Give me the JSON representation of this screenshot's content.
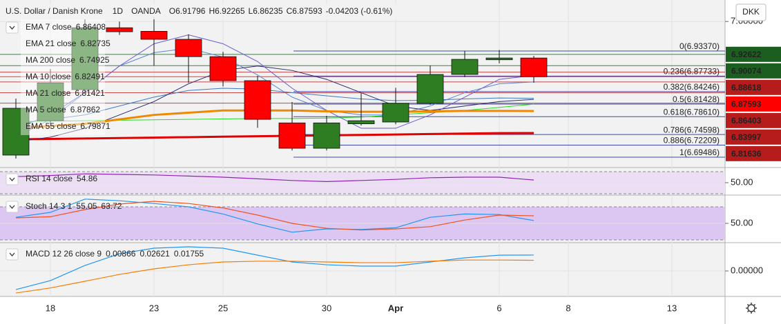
{
  "chart_data": [
    {
      "type": "candlestick",
      "title": "U.S. Dollar / Danish Krone",
      "interval": "1D",
      "source": "OANDA",
      "ohlc_labels": [
        "O6.91796",
        "H6.92265",
        "L6.86235",
        "C6.87593"
      ],
      "change_label": "-0.04203 (-0.61%)",
      "currency": "DKK",
      "open": [
        6.6996,
        6.777,
        6.847,
        6.986,
        6.978,
        6.96,
        6.921,
        6.867,
        6.772,
        6.715,
        6.77,
        6.774,
        6.816,
        6.881,
        6.914,
        6.91796
      ],
      "high": [
        6.8267,
        6.893,
        7.005,
        7.0,
        7.01,
        6.971,
        6.932,
        6.878,
        6.819,
        6.788,
        6.839,
        6.851,
        6.901,
        6.934,
        6.936,
        6.92265
      ],
      "low": [
        6.6918,
        6.769,
        6.839,
        6.97,
        6.901,
        6.862,
        6.854,
        6.761,
        6.71,
        6.71,
        6.766,
        6.769,
        6.813,
        6.875,
        6.906,
        6.86235
      ],
      "close": [
        6.805,
        6.862,
        6.986,
        6.977,
        6.96,
        6.921,
        6.867,
        6.78,
        6.715,
        6.772,
        6.777,
        6.816,
        6.881,
        6.915,
        6.918,
        6.87593
      ],
      "up_color": "#2e7d22",
      "down_color": "#ff0000",
      "xlim": [
        -0.46,
        20.54
      ],
      "xticks": [
        {
          "value": 1,
          "label": "18"
        },
        {
          "value": 4,
          "label": "23"
        },
        {
          "value": 6,
          "label": "25"
        },
        {
          "value": 9,
          "label": "30"
        },
        {
          "value": 11,
          "label": "Apr"
        },
        {
          "value": 14,
          "label": "6"
        },
        {
          "value": 16,
          "label": "8"
        },
        {
          "value": 19,
          "label": "13"
        }
      ],
      "ylim": [
        6.6717,
        7.0484
      ],
      "yticks": [
        {
          "value": 7,
          "label": "7.00000"
        }
      ],
      "series": [
        {
          "name": "EMA 7 close",
          "color": "#5c85d6",
          "width": 1,
          "values": [
            6.74,
            6.78,
            6.84,
            6.9,
            6.93,
            6.94,
            6.92,
            6.88,
            6.83,
            6.8,
            6.79,
            6.79,
            6.81,
            6.84,
            6.86,
            6.86408
          ]
        },
        {
          "name": "EMA 21 close",
          "color": "#3f78c0",
          "width": 1,
          "values": [
            6.77,
            6.78,
            6.79,
            6.81,
            6.83,
            6.845,
            6.85,
            6.848,
            6.84,
            6.833,
            6.826,
            6.822,
            6.823,
            6.826,
            6.828,
            6.82735
          ]
        },
        {
          "name": "MA 200 close",
          "color": "#e00000",
          "width": 3,
          "values": [
            6.735,
            6.736,
            6.737,
            6.738,
            6.739,
            6.74,
            6.741,
            6.742,
            6.743,
            6.744,
            6.745,
            6.746,
            6.747,
            6.748,
            6.749,
            6.74925
          ]
        },
        {
          "name": "MA 10 close",
          "color": "#2a2a6e",
          "width": 1,
          "values": [
            6.73,
            6.74,
            6.76,
            6.79,
            6.82,
            6.86,
            6.89,
            6.9,
            6.89,
            6.87,
            6.84,
            6.81,
            6.8,
            6.81,
            6.82,
            6.82491
          ]
        },
        {
          "name": "MA 21 close",
          "color": "#22dd22",
          "width": 1,
          "values": [
            6.775,
            6.776,
            6.777,
            6.778,
            6.779,
            6.78,
            6.781,
            6.782,
            6.782,
            6.783,
            6.785,
            6.79,
            6.795,
            6.8,
            6.807,
            6.81421
          ]
        },
        {
          "name": "MA 5 close",
          "color": "#6a5acd",
          "width": 1,
          "values": [
            6.76,
            6.79,
            6.84,
            6.9,
            6.95,
            6.97,
            6.95,
            6.91,
            6.85,
            6.8,
            6.76,
            6.76,
            6.79,
            6.83,
            6.87,
            6.87862
          ]
        },
        {
          "name": "EMA 55 close",
          "color": "#ef8a00",
          "width": 3,
          "values": [
            6.76,
            6.765,
            6.77,
            6.78,
            6.79,
            6.795,
            6.8,
            6.8,
            6.8,
            6.798,
            6.797,
            6.797,
            6.798,
            6.799,
            6.799,
            6.79871
          ]
        }
      ],
      "fib_levels": [
        {
          "label": "0(6.93370)",
          "value": 6.9337
        },
        {
          "label": "0.236(6.87733)",
          "value": 6.87733
        },
        {
          "label": "0.382(6.84246)",
          "value": 6.84246
        },
        {
          "label": "0.5(6.81428)",
          "value": 6.81428
        },
        {
          "label": "0.618(6.78610)",
          "value": 6.7861
        },
        {
          "label": "0.786(6.74598)",
          "value": 6.74598
        },
        {
          "label": "0.886(6.72209)",
          "value": 6.72209
        },
        {
          "label": "1(6.69486)",
          "value": 6.69486
        }
      ],
      "fib_color": "#3949ab",
      "price_tags": [
        {
          "value": 6.92622,
          "color": "#1b5e20"
        },
        {
          "value": 6.90074,
          "color": "#1b5e20"
        },
        {
          "value": 6.88618,
          "color": "#b71c1c"
        },
        {
          "value": 6.87593,
          "color": "#ff0000"
        },
        {
          "value": 6.86403,
          "color": "#b71c1c"
        },
        {
          "value": 6.83997,
          "color": "#b71c1c"
        },
        {
          "value": 6.81636,
          "color": "#b71c1c"
        }
      ]
    },
    {
      "type": "line",
      "title": "RSI 14 close",
      "ylim": [
        27.5,
        77.5
      ],
      "yticks": [
        {
          "value": 50,
          "label": "50.00"
        }
      ],
      "band": [
        30,
        70
      ],
      "band_color": "#ecdff5",
      "series": [
        {
          "color": "#8e24aa",
          "values": [
            61,
            63,
            66,
            65,
            64,
            62,
            60,
            57,
            54,
            52,
            54,
            56,
            59,
            60,
            60,
            54.86
          ]
        }
      ]
    },
    {
      "type": "line",
      "title": "Stoch 14 3 1",
      "ylim": [
        15,
        101.25
      ],
      "yticks": [
        {
          "value": 50,
          "label": "50.00"
        }
      ],
      "band": [
        20,
        80
      ],
      "band_color": "#dcc6f2",
      "series": [
        {
          "color": "#2196f3",
          "values": [
            61,
            70,
            94,
            91,
            86,
            80,
            67,
            49,
            34,
            40,
            39,
            42,
            61,
            67,
            66,
            55.05
          ]
        },
        {
          "color": "#f4511e",
          "values": [
            60,
            62,
            75,
            85,
            90,
            86,
            78,
            65,
            50,
            41,
            38,
            40,
            44,
            56,
            65,
            63.72
          ]
        }
      ]
    },
    {
      "type": "line",
      "title": "MACD 12 26 close 9",
      "ylim": [
        -0.042,
        0.0466
      ],
      "yticks": [
        {
          "value": 0,
          "label": "0.00000"
        }
      ],
      "histogram": {
        "value": 0.00866,
        "color": "#a8dde8"
      },
      "series": [
        {
          "color": "#2196f3",
          "values": [
            -0.0307,
            -0.016,
            0.009,
            0.0284,
            0.0375,
            0.0398,
            0.0375,
            0.026,
            0.0148,
            0.0102,
            0.008,
            0.008,
            0.0148,
            0.0216,
            0.026,
            0.02621
          ]
        },
        {
          "color": "#f57c00",
          "values": [
            -0.0364,
            -0.028,
            -0.017,
            -0.0057,
            0.0034,
            0.0102,
            0.0148,
            0.016,
            0.016,
            0.0148,
            0.0136,
            0.0136,
            0.016,
            0.018,
            0.018,
            0.01755
          ]
        }
      ]
    }
  ]
}
